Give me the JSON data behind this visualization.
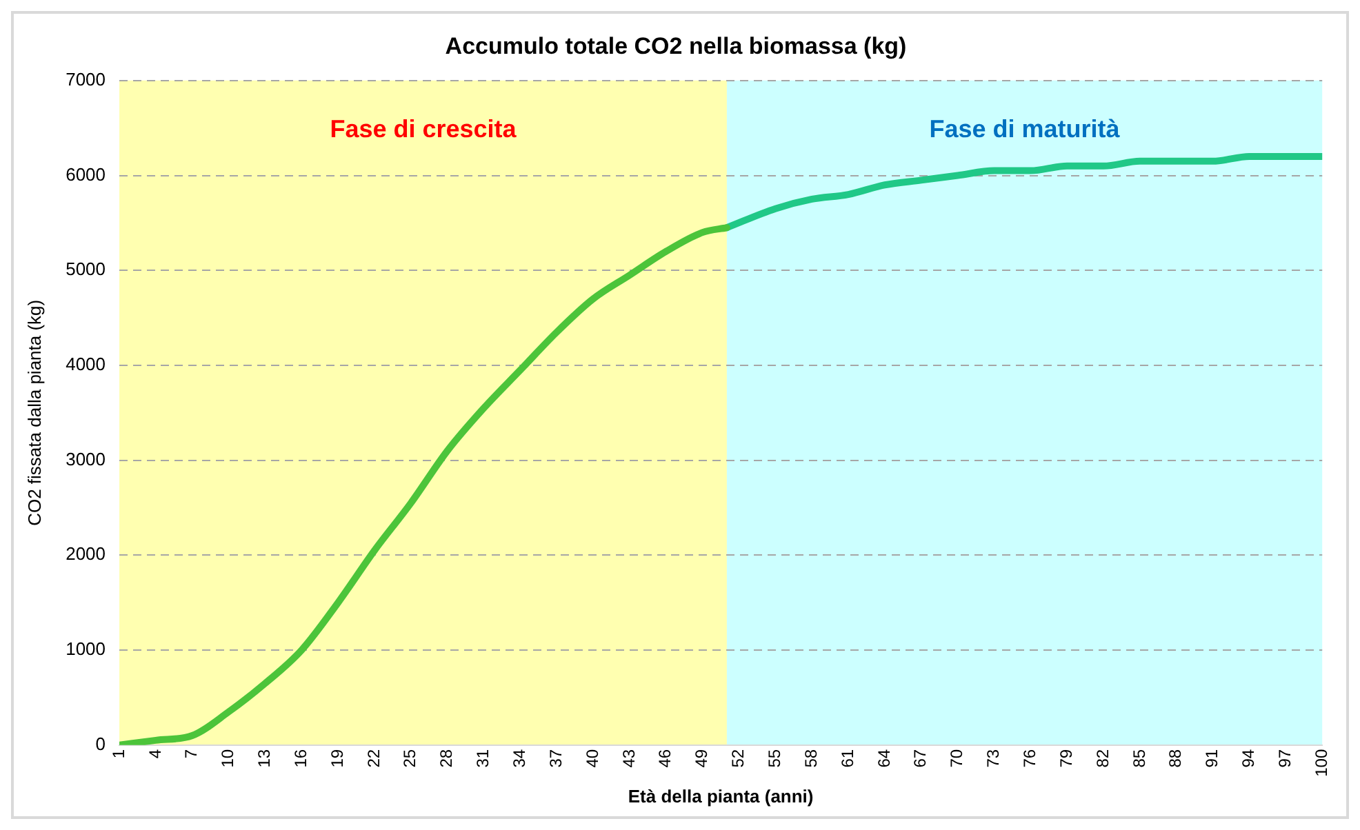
{
  "chart_data": {
    "type": "line",
    "title": "Accumulo totale CO2 nella biomassa (kg)",
    "xlabel": "Età della pianta (anni)",
    "ylabel": "CO2 fissata dalla pianta (kg)",
    "xlim": [
      1,
      100
    ],
    "xticks": [
      1,
      4,
      7,
      10,
      13,
      16,
      19,
      22,
      25,
      28,
      31,
      34,
      37,
      40,
      43,
      46,
      49,
      52,
      55,
      58,
      61,
      64,
      67,
      70,
      73,
      76,
      79,
      82,
      85,
      88,
      91,
      94,
      97,
      100
    ],
    "ylim": [
      0,
      7000
    ],
    "yticks": [
      0,
      1000,
      2000,
      3000,
      4000,
      5000,
      6000,
      7000
    ],
    "grid": "y",
    "legend": false,
    "marker": "none",
    "line_style": "solid",
    "series": [
      {
        "color": "#4cc43a",
        "x": [
          1,
          4,
          7,
          10,
          13,
          16,
          19,
          22,
          25,
          28,
          31,
          34,
          37,
          40,
          43,
          46,
          49,
          51
        ],
        "values": [
          0,
          50,
          100,
          350,
          650,
          1000,
          1500,
          2050,
          2550,
          3100,
          3550,
          3950,
          4350,
          4700,
          4950,
          5200,
          5400,
          5450
        ]
      },
      {
        "color": "#20c887",
        "x": [
          51,
          55,
          58,
          61,
          64,
          67,
          70,
          73,
          76,
          79,
          82,
          85,
          88,
          91,
          94,
          97,
          100
        ],
        "values": [
          5450,
          5650,
          5750,
          5800,
          5900,
          5950,
          6000,
          6050,
          6050,
          6100,
          6100,
          6150,
          6150,
          6150,
          6200,
          6200,
          6200
        ]
      }
    ],
    "bands": [
      {
        "axis": "x",
        "from": 1,
        "to": 51,
        "label": "Fase di crescita",
        "color": "#ffffb0"
      },
      {
        "axis": "x",
        "from": 51,
        "to": 100,
        "label": "Fase di maturità",
        "color": "#ccffff"
      }
    ]
  }
}
